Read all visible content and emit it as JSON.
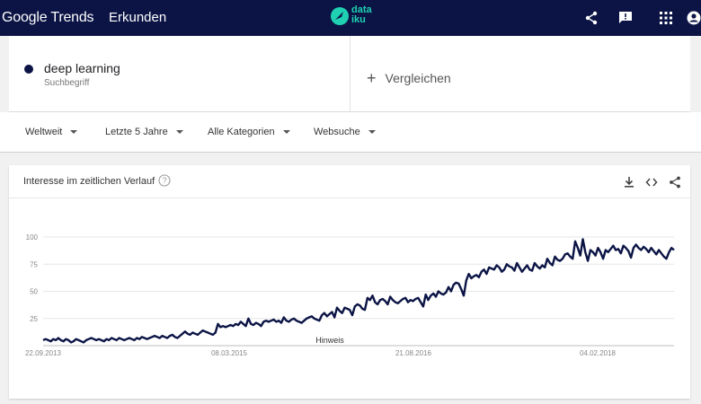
{
  "topbar": {
    "logo": "Google Trends",
    "title": "Erkunden",
    "partner_logo_line1": "data",
    "partner_logo_line2": "iku",
    "icons": [
      "share-icon",
      "feedback-icon",
      "apps-icon",
      "account-icon"
    ],
    "bg_color": "#0b1445",
    "partner_color": "#1fd1b2"
  },
  "term": {
    "name": "deep learning",
    "type": "Suchbegriff",
    "dot_color": "#0b1445"
  },
  "compare": {
    "label": "Vergleichen"
  },
  "filters": [
    "Weltweit",
    "Letzte 5 Jahre",
    "Alle Kategorien",
    "Websuche"
  ],
  "chart_card": {
    "title": "Interesse im zeitlichen Verlauf",
    "icons": [
      "help-icon",
      "download-icon",
      "embed-icon",
      "share-icon"
    ]
  },
  "chart_data": {
    "type": "line",
    "title": "",
    "xlabel": "",
    "ylabel": "",
    "ylim": [
      0,
      100
    ],
    "yticks": [
      100,
      75,
      50,
      25
    ],
    "x_ticks": [
      "22.09.2013",
      "08.03.2015",
      "21.08.2016",
      "04.02.2018"
    ],
    "annotation": "Hinweis",
    "grid": true,
    "line_color": "#0b1445",
    "series": [
      {
        "values": [
          5,
          6,
          5,
          4,
          6,
          5,
          7,
          5,
          4,
          6,
          5,
          3,
          4,
          6,
          5,
          4,
          3,
          5,
          6,
          7,
          6,
          5,
          6,
          5,
          4,
          6,
          5,
          7,
          6,
          5,
          7,
          6,
          5,
          6,
          7,
          6,
          5,
          7,
          6,
          8,
          7,
          6,
          7,
          8,
          9,
          8,
          7,
          9,
          8,
          7,
          9,
          10,
          8,
          7,
          9,
          11,
          13,
          11,
          10,
          12,
          11,
          10,
          12,
          14,
          13,
          12,
          11,
          10,
          12,
          20,
          17,
          18,
          17,
          18,
          19,
          18,
          20,
          19,
          22,
          20,
          18,
          25,
          20,
          19,
          21,
          20,
          18,
          22,
          23,
          22,
          23,
          24,
          22,
          23,
          21,
          26,
          23,
          22,
          24,
          25,
          23,
          22,
          21,
          23,
          25,
          26,
          27,
          25,
          24,
          23,
          28,
          30,
          27,
          29,
          31,
          26,
          35,
          32,
          30,
          35,
          34,
          33,
          28,
          36,
          38,
          37,
          34,
          33,
          44,
          42,
          46,
          40,
          38,
          42,
          43,
          41,
          38,
          45,
          42,
          40,
          39,
          41,
          43,
          44,
          40,
          42,
          41,
          43,
          44,
          40,
          36,
          47,
          42,
          46,
          48,
          45,
          50,
          48,
          47,
          49,
          54,
          50,
          56,
          58,
          57,
          52,
          46,
          60,
          66,
          62,
          64,
          65,
          63,
          68,
          70,
          66,
          72,
          71,
          70,
          74,
          72,
          68,
          70,
          75,
          73,
          72,
          69,
          76,
          72,
          68,
          71,
          74,
          70,
          69,
          76,
          73,
          71,
          74,
          72,
          80,
          76,
          74,
          82,
          79,
          78,
          80,
          84,
          85,
          82,
          80,
          96,
          90,
          83,
          98,
          86,
          78,
          88,
          86,
          83,
          90,
          86,
          80,
          88,
          86,
          89,
          92,
          88,
          89,
          85,
          92,
          90,
          87,
          81,
          90,
          93,
          90,
          88,
          91,
          89,
          86,
          90,
          87,
          84,
          88,
          85,
          82,
          80,
          86,
          90,
          88
        ]
      }
    ]
  }
}
